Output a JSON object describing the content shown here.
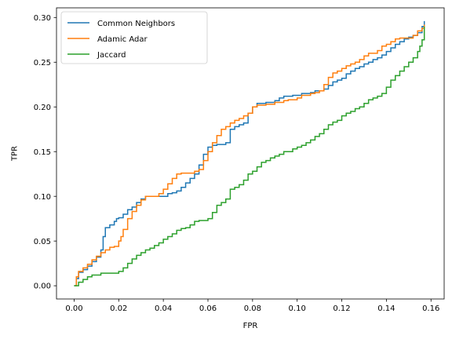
{
  "chart_data": {
    "type": "line",
    "title": "",
    "xlabel": "FPR",
    "ylabel": "TPR",
    "xlim": [
      -0.0079,
      0.1659
    ],
    "ylim": [
      -0.0148,
      0.3108
    ],
    "xticks": [
      0.0,
      0.02,
      0.04,
      0.06,
      0.08,
      0.1,
      0.12,
      0.14,
      0.16
    ],
    "xtick_labels": [
      "0.00",
      "0.02",
      "0.04",
      "0.06",
      "0.08",
      "0.10",
      "0.12",
      "0.14",
      "0.16"
    ],
    "yticks": [
      0.0,
      0.05,
      0.1,
      0.15,
      0.2,
      0.25,
      0.3
    ],
    "ytick_labels": [
      "0.00",
      "0.05",
      "0.10",
      "0.15",
      "0.20",
      "0.25",
      "0.30"
    ],
    "grid": false,
    "legend_position": "upper-left",
    "series": [
      {
        "name": "Common Neighbors",
        "color": "#1f77b4",
        "x": [
          0.0,
          0.001,
          0.002,
          0.004,
          0.006,
          0.008,
          0.01,
          0.012,
          0.013,
          0.014,
          0.016,
          0.018,
          0.019,
          0.02,
          0.022,
          0.024,
          0.026,
          0.028,
          0.03,
          0.032,
          0.034,
          0.036,
          0.038,
          0.04,
          0.042,
          0.044,
          0.046,
          0.048,
          0.05,
          0.052,
          0.054,
          0.056,
          0.058,
          0.06,
          0.062,
          0.064,
          0.066,
          0.068,
          0.07,
          0.072,
          0.074,
          0.076,
          0.078,
          0.08,
          0.082,
          0.084,
          0.086,
          0.088,
          0.09,
          0.092,
          0.094,
          0.096,
          0.098,
          0.1,
          0.102,
          0.104,
          0.106,
          0.108,
          0.11,
          0.112,
          0.114,
          0.116,
          0.118,
          0.12,
          0.122,
          0.124,
          0.126,
          0.128,
          0.13,
          0.132,
          0.134,
          0.136,
          0.138,
          0.14,
          0.142,
          0.144,
          0.146,
          0.148,
          0.15,
          0.152,
          0.154,
          0.156,
          0.157
        ],
        "y": [
          0.0,
          0.008,
          0.015,
          0.018,
          0.022,
          0.027,
          0.032,
          0.04,
          0.055,
          0.065,
          0.068,
          0.072,
          0.075,
          0.076,
          0.08,
          0.085,
          0.088,
          0.093,
          0.097,
          0.1,
          0.1,
          0.1,
          0.1,
          0.1,
          0.103,
          0.104,
          0.106,
          0.11,
          0.115,
          0.12,
          0.125,
          0.135,
          0.147,
          0.155,
          0.157,
          0.158,
          0.158,
          0.16,
          0.175,
          0.178,
          0.18,
          0.182,
          0.193,
          0.2,
          0.204,
          0.204,
          0.205,
          0.205,
          0.207,
          0.21,
          0.212,
          0.212,
          0.213,
          0.213,
          0.215,
          0.215,
          0.216,
          0.218,
          0.218,
          0.22,
          0.224,
          0.228,
          0.23,
          0.232,
          0.237,
          0.24,
          0.243,
          0.245,
          0.248,
          0.25,
          0.253,
          0.255,
          0.258,
          0.262,
          0.266,
          0.27,
          0.273,
          0.276,
          0.278,
          0.28,
          0.283,
          0.29,
          0.296
        ]
      },
      {
        "name": "Adamic Adar",
        "color": "#ff7f0e",
        "x": [
          0.0,
          0.001,
          0.002,
          0.004,
          0.006,
          0.008,
          0.01,
          0.012,
          0.014,
          0.016,
          0.018,
          0.02,
          0.021,
          0.022,
          0.024,
          0.026,
          0.028,
          0.03,
          0.032,
          0.034,
          0.036,
          0.038,
          0.04,
          0.042,
          0.044,
          0.046,
          0.048,
          0.05,
          0.052,
          0.054,
          0.056,
          0.058,
          0.06,
          0.062,
          0.064,
          0.066,
          0.068,
          0.07,
          0.072,
          0.074,
          0.076,
          0.078,
          0.08,
          0.082,
          0.084,
          0.086,
          0.088,
          0.09,
          0.092,
          0.094,
          0.096,
          0.098,
          0.1,
          0.102,
          0.104,
          0.106,
          0.108,
          0.11,
          0.112,
          0.114,
          0.116,
          0.118,
          0.12,
          0.122,
          0.124,
          0.126,
          0.128,
          0.13,
          0.132,
          0.134,
          0.136,
          0.138,
          0.14,
          0.142,
          0.144,
          0.146,
          0.148,
          0.15,
          0.152,
          0.154,
          0.156,
          0.157
        ],
        "y": [
          0.0,
          0.01,
          0.016,
          0.02,
          0.024,
          0.029,
          0.033,
          0.037,
          0.04,
          0.043,
          0.044,
          0.05,
          0.055,
          0.063,
          0.075,
          0.083,
          0.09,
          0.096,
          0.1,
          0.1,
          0.1,
          0.103,
          0.108,
          0.114,
          0.12,
          0.125,
          0.126,
          0.126,
          0.126,
          0.128,
          0.13,
          0.14,
          0.15,
          0.16,
          0.168,
          0.175,
          0.178,
          0.182,
          0.185,
          0.187,
          0.19,
          0.193,
          0.2,
          0.202,
          0.202,
          0.203,
          0.203,
          0.205,
          0.205,
          0.207,
          0.208,
          0.208,
          0.21,
          0.213,
          0.213,
          0.215,
          0.216,
          0.218,
          0.225,
          0.233,
          0.238,
          0.24,
          0.243,
          0.246,
          0.248,
          0.25,
          0.253,
          0.257,
          0.26,
          0.26,
          0.263,
          0.268,
          0.27,
          0.273,
          0.276,
          0.277,
          0.277,
          0.277,
          0.28,
          0.285,
          0.288,
          0.292
        ]
      },
      {
        "name": "Jaccard",
        "color": "#2ca02c",
        "x": [
          0.0,
          0.002,
          0.004,
          0.006,
          0.008,
          0.01,
          0.012,
          0.014,
          0.016,
          0.018,
          0.02,
          0.022,
          0.024,
          0.026,
          0.028,
          0.03,
          0.032,
          0.034,
          0.036,
          0.038,
          0.04,
          0.042,
          0.044,
          0.046,
          0.048,
          0.05,
          0.052,
          0.054,
          0.056,
          0.058,
          0.06,
          0.062,
          0.064,
          0.066,
          0.068,
          0.07,
          0.072,
          0.074,
          0.076,
          0.078,
          0.08,
          0.082,
          0.084,
          0.086,
          0.088,
          0.09,
          0.092,
          0.094,
          0.096,
          0.098,
          0.1,
          0.102,
          0.104,
          0.106,
          0.108,
          0.11,
          0.112,
          0.114,
          0.116,
          0.118,
          0.12,
          0.122,
          0.124,
          0.126,
          0.128,
          0.13,
          0.132,
          0.134,
          0.136,
          0.138,
          0.14,
          0.142,
          0.144,
          0.146,
          0.148,
          0.15,
          0.152,
          0.154,
          0.155,
          0.156,
          0.157
        ],
        "y": [
          0.0,
          0.004,
          0.007,
          0.01,
          0.012,
          0.012,
          0.014,
          0.014,
          0.014,
          0.014,
          0.016,
          0.02,
          0.025,
          0.03,
          0.034,
          0.037,
          0.04,
          0.042,
          0.045,
          0.048,
          0.052,
          0.055,
          0.058,
          0.062,
          0.064,
          0.065,
          0.068,
          0.072,
          0.073,
          0.073,
          0.075,
          0.082,
          0.09,
          0.093,
          0.097,
          0.108,
          0.11,
          0.113,
          0.118,
          0.125,
          0.128,
          0.133,
          0.138,
          0.14,
          0.143,
          0.145,
          0.147,
          0.15,
          0.15,
          0.153,
          0.155,
          0.157,
          0.16,
          0.163,
          0.167,
          0.17,
          0.175,
          0.18,
          0.183,
          0.185,
          0.19,
          0.193,
          0.195,
          0.198,
          0.2,
          0.204,
          0.208,
          0.21,
          0.212,
          0.215,
          0.222,
          0.23,
          0.235,
          0.24,
          0.245,
          0.25,
          0.255,
          0.262,
          0.268,
          0.275,
          0.29
        ]
      }
    ]
  }
}
